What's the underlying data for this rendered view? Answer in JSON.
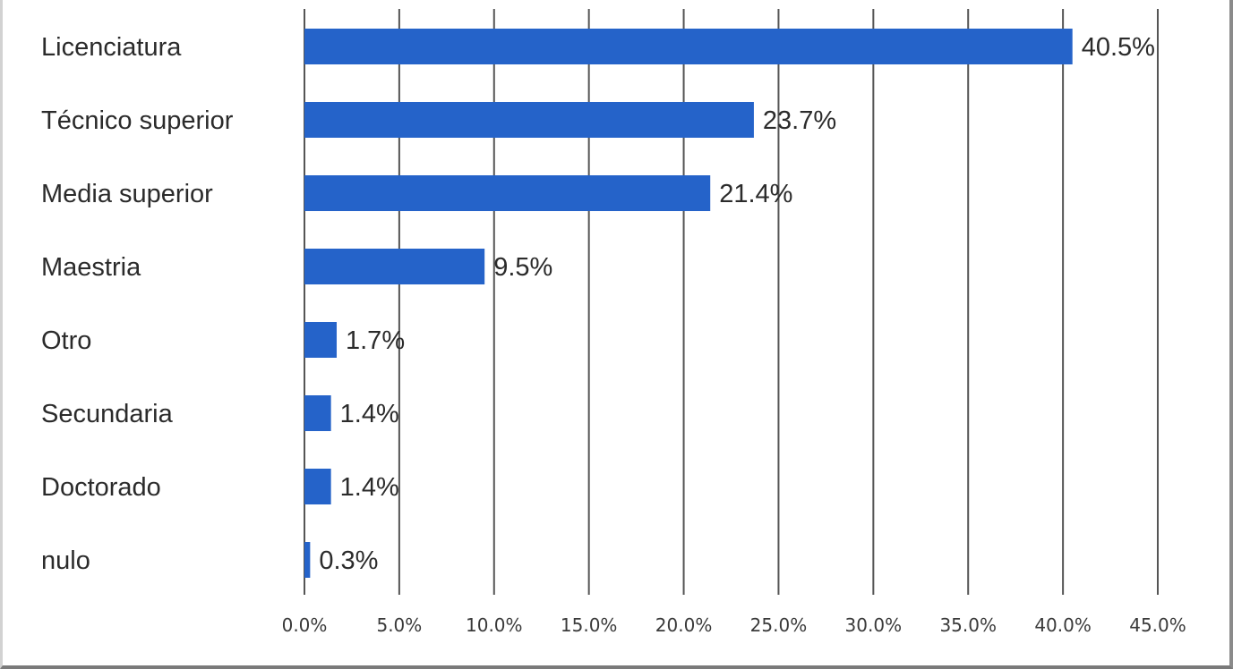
{
  "chart_data": {
    "type": "bar",
    "orientation": "horizontal",
    "title": "",
    "xlabel": "",
    "ylabel": "",
    "categories": [
      "Licenciatura",
      "Técnico superior",
      "Media superior",
      "Maestria",
      "Otro",
      "Secundaria",
      "Doctorado",
      "nulo"
    ],
    "values": [
      40.5,
      23.7,
      21.4,
      9.5,
      1.7,
      1.4,
      1.4,
      0.3
    ],
    "data_labels": [
      "40.5%",
      "23.7%",
      "21.4%",
      "9.5%",
      "1.7%",
      "1.4%",
      "1.4%",
      "0.3%"
    ],
    "xlim": [
      0,
      45
    ],
    "ticks": [
      0,
      5,
      10,
      15,
      20,
      25,
      30,
      35,
      40,
      45
    ],
    "tick_labels": [
      "0.0%",
      "5.0%",
      "10.0%",
      "15.0%",
      "20.0%",
      "25.0%",
      "30.0%",
      "35.0%",
      "40.0%",
      "45.0%"
    ],
    "grid": "vertical",
    "legend": "none",
    "bar_color": "#2563c9",
    "grid_color": "#555555",
    "text_color": "#2b2b2b"
  }
}
